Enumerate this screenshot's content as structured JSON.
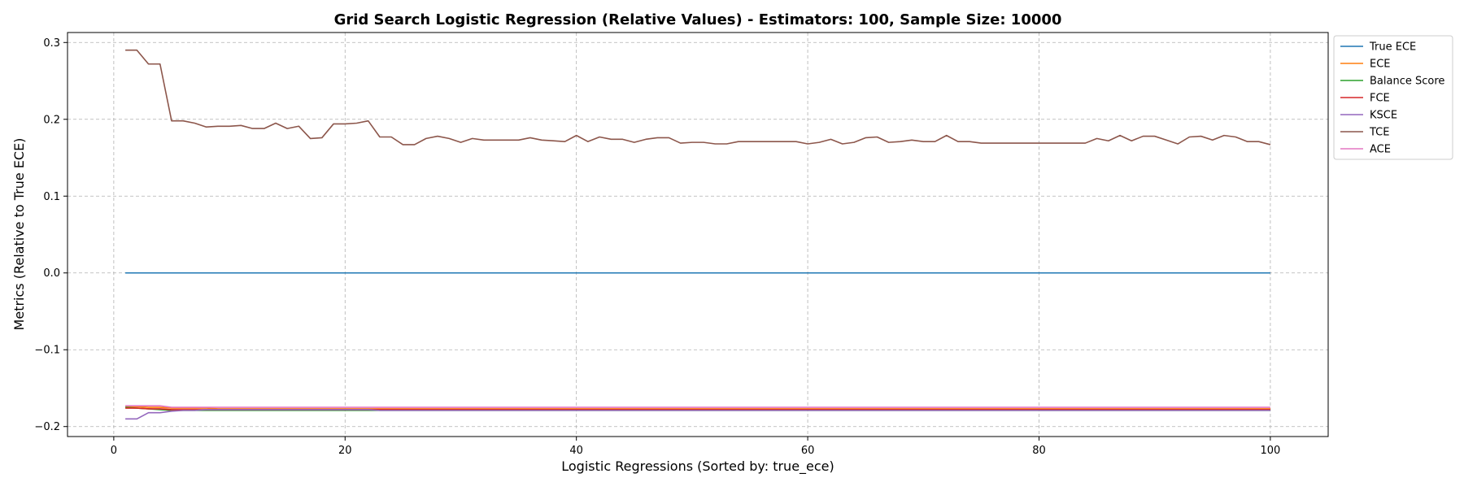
{
  "chart_data": {
    "type": "line",
    "title": "Grid Search Logistic Regression (Relative Values) - Estimators: 100, Sample Size: 10000",
    "xlabel": "Logistic Regressions (Sorted by: true_ece)",
    "ylabel": "Metrics (Relative to True ECE)",
    "xlim": [
      -4,
      105
    ],
    "ylim": [
      -0.213,
      0.313
    ],
    "x_ticks": [
      0,
      20,
      40,
      60,
      80,
      100
    ],
    "y_ticks": [
      -0.2,
      -0.1,
      0.0,
      0.1,
      0.2,
      0.3
    ],
    "y_tick_labels": [
      "−0.2",
      "−0.1",
      "0.0",
      "0.1",
      "0.2",
      "0.3"
    ],
    "grid": true,
    "legend_position": "outside-top-right",
    "x_start": 1,
    "series": [
      {
        "name": "True ECE",
        "color": "#1f77b4",
        "values": [
          0.0,
          0.0,
          0.0,
          0.0,
          0.0,
          0.0,
          0.0,
          0.0,
          0.0,
          0.0,
          0.0,
          0.0,
          0.0,
          0.0,
          0.0,
          0.0,
          0.0,
          0.0,
          0.0,
          0.0,
          0.0,
          0.0,
          0.0,
          0.0,
          0.0,
          0.0,
          0.0,
          0.0,
          0.0,
          0.0,
          0.0,
          0.0,
          0.0,
          0.0,
          0.0,
          0.0,
          0.0,
          0.0,
          0.0,
          0.0,
          0.0,
          0.0,
          0.0,
          0.0,
          0.0,
          0.0,
          0.0,
          0.0,
          0.0,
          0.0,
          0.0,
          0.0,
          0.0,
          0.0,
          0.0,
          0.0,
          0.0,
          0.0,
          0.0,
          0.0,
          0.0,
          0.0,
          0.0,
          0.0,
          0.0,
          0.0,
          0.0,
          0.0,
          0.0,
          0.0,
          0.0,
          0.0,
          0.0,
          0.0,
          0.0,
          0.0,
          0.0,
          0.0,
          0.0,
          0.0,
          0.0,
          0.0,
          0.0,
          0.0,
          0.0,
          0.0,
          0.0,
          0.0,
          0.0,
          0.0,
          0.0,
          0.0,
          0.0,
          0.0,
          0.0,
          0.0,
          0.0,
          0.0,
          0.0,
          0.0
        ]
      },
      {
        "name": "ECE",
        "color": "#ff7f0e",
        "values": [
          -0.174,
          -0.174,
          -0.175,
          -0.175,
          -0.176,
          -0.176,
          -0.176,
          -0.176,
          -0.177,
          -0.177,
          -0.177,
          -0.177,
          -0.177,
          -0.177,
          -0.177,
          -0.177,
          -0.177,
          -0.177,
          -0.177,
          -0.177,
          -0.177,
          -0.177,
          -0.177,
          -0.177,
          -0.177,
          -0.177,
          -0.177,
          -0.177,
          -0.177,
          -0.177,
          -0.177,
          -0.177,
          -0.177,
          -0.177,
          -0.177,
          -0.177,
          -0.177,
          -0.177,
          -0.177,
          -0.177,
          -0.177,
          -0.177,
          -0.177,
          -0.177,
          -0.177,
          -0.177,
          -0.177,
          -0.177,
          -0.177,
          -0.177,
          -0.177,
          -0.177,
          -0.177,
          -0.177,
          -0.177,
          -0.177,
          -0.177,
          -0.177,
          -0.177,
          -0.177,
          -0.177,
          -0.177,
          -0.177,
          -0.177,
          -0.177,
          -0.177,
          -0.177,
          -0.177,
          -0.177,
          -0.177,
          -0.177,
          -0.177,
          -0.177,
          -0.177,
          -0.177,
          -0.177,
          -0.177,
          -0.177,
          -0.177,
          -0.177,
          -0.177,
          -0.177,
          -0.177,
          -0.177,
          -0.177,
          -0.177,
          -0.177,
          -0.177,
          -0.177,
          -0.177,
          -0.177,
          -0.177,
          -0.177,
          -0.177,
          -0.177,
          -0.177,
          -0.177,
          -0.177,
          -0.177,
          -0.177
        ]
      },
      {
        "name": "Balance Score",
        "color": "#2ca02c",
        "values": [
          -0.175,
          -0.176,
          -0.177,
          -0.178,
          -0.179,
          -0.179,
          -0.179,
          -0.179,
          -0.179,
          -0.179,
          -0.179,
          -0.179,
          -0.179,
          -0.179,
          -0.179,
          -0.179,
          -0.179,
          -0.179,
          -0.179,
          -0.179,
          -0.179,
          -0.179,
          -0.179,
          -0.179,
          -0.179,
          -0.179,
          -0.179,
          -0.179,
          -0.179,
          -0.179,
          -0.179,
          -0.179,
          -0.179,
          -0.179,
          -0.179,
          -0.179,
          -0.179,
          -0.179,
          -0.179,
          -0.179,
          -0.179,
          -0.179,
          -0.179,
          -0.179,
          -0.179,
          -0.179,
          -0.179,
          -0.179,
          -0.179,
          -0.179,
          -0.179,
          -0.179,
          -0.179,
          -0.179,
          -0.179,
          -0.179,
          -0.179,
          -0.179,
          -0.179,
          -0.179,
          -0.179,
          -0.179,
          -0.179,
          -0.179,
          -0.179,
          -0.179,
          -0.179,
          -0.179,
          -0.179,
          -0.179,
          -0.179,
          -0.179,
          -0.179,
          -0.179,
          -0.179,
          -0.179,
          -0.179,
          -0.179,
          -0.179,
          -0.179,
          -0.179,
          -0.179,
          -0.179,
          -0.179,
          -0.179,
          -0.179,
          -0.179,
          -0.179,
          -0.179,
          -0.179,
          -0.179,
          -0.179,
          -0.179,
          -0.179,
          -0.179,
          -0.179,
          -0.179,
          -0.179,
          -0.179,
          -0.179
        ]
      },
      {
        "name": "FCE",
        "color": "#d62728",
        "values": [
          -0.176,
          -0.176,
          -0.177,
          -0.177,
          -0.178,
          -0.178,
          -0.178,
          -0.178,
          -0.178,
          -0.178,
          -0.178,
          -0.178,
          -0.178,
          -0.178,
          -0.178,
          -0.178,
          -0.178,
          -0.178,
          -0.178,
          -0.178,
          -0.178,
          -0.178,
          -0.178,
          -0.178,
          -0.178,
          -0.178,
          -0.178,
          -0.178,
          -0.178,
          -0.178,
          -0.178,
          -0.178,
          -0.178,
          -0.178,
          -0.178,
          -0.178,
          -0.178,
          -0.178,
          -0.178,
          -0.178,
          -0.178,
          -0.178,
          -0.178,
          -0.178,
          -0.178,
          -0.178,
          -0.178,
          -0.178,
          -0.178,
          -0.178,
          -0.178,
          -0.178,
          -0.178,
          -0.178,
          -0.178,
          -0.178,
          -0.178,
          -0.178,
          -0.178,
          -0.178,
          -0.178,
          -0.178,
          -0.178,
          -0.178,
          -0.178,
          -0.178,
          -0.178,
          -0.178,
          -0.178,
          -0.178,
          -0.178,
          -0.178,
          -0.178,
          -0.178,
          -0.178,
          -0.178,
          -0.178,
          -0.178,
          -0.178,
          -0.178,
          -0.178,
          -0.178,
          -0.178,
          -0.178,
          -0.178,
          -0.178,
          -0.178,
          -0.178,
          -0.178,
          -0.178,
          -0.178,
          -0.178,
          -0.178,
          -0.178,
          -0.178,
          -0.178,
          -0.178,
          -0.178,
          -0.178,
          -0.178
        ]
      },
      {
        "name": "KSCE",
        "color": "#9467bd",
        "values": [
          -0.19,
          -0.19,
          -0.182,
          -0.182,
          -0.18,
          -0.179,
          -0.179,
          -0.178,
          -0.178,
          -0.178,
          -0.178,
          -0.178,
          -0.178,
          -0.178,
          -0.178,
          -0.178,
          -0.178,
          -0.178,
          -0.178,
          -0.178,
          -0.178,
          -0.178,
          -0.179,
          -0.179,
          -0.179,
          -0.179,
          -0.179,
          -0.179,
          -0.179,
          -0.179,
          -0.179,
          -0.179,
          -0.179,
          -0.179,
          -0.179,
          -0.179,
          -0.179,
          -0.179,
          -0.179,
          -0.179,
          -0.179,
          -0.179,
          -0.179,
          -0.179,
          -0.179,
          -0.179,
          -0.179,
          -0.179,
          -0.179,
          -0.179,
          -0.179,
          -0.179,
          -0.179,
          -0.179,
          -0.179,
          -0.179,
          -0.179,
          -0.179,
          -0.179,
          -0.179,
          -0.179,
          -0.179,
          -0.179,
          -0.179,
          -0.179,
          -0.179,
          -0.179,
          -0.179,
          -0.179,
          -0.179,
          -0.179,
          -0.179,
          -0.179,
          -0.179,
          -0.179,
          -0.179,
          -0.179,
          -0.179,
          -0.179,
          -0.179,
          -0.179,
          -0.179,
          -0.179,
          -0.179,
          -0.179,
          -0.179,
          -0.179,
          -0.179,
          -0.179,
          -0.179,
          -0.179,
          -0.179,
          -0.179,
          -0.179,
          -0.179,
          -0.179,
          -0.179,
          -0.179,
          -0.179,
          -0.179
        ]
      },
      {
        "name": "TCE",
        "color": "#8c564b",
        "values": [
          0.29,
          0.29,
          0.272,
          0.272,
          0.198,
          0.198,
          0.195,
          0.19,
          0.191,
          0.191,
          0.192,
          0.188,
          0.188,
          0.195,
          0.188,
          0.191,
          0.175,
          0.176,
          0.194,
          0.194,
          0.195,
          0.198,
          0.177,
          0.177,
          0.167,
          0.167,
          0.175,
          0.178,
          0.175,
          0.17,
          0.175,
          0.173,
          0.173,
          0.173,
          0.173,
          0.176,
          0.173,
          0.172,
          0.171,
          0.179,
          0.171,
          0.177,
          0.174,
          0.174,
          0.17,
          0.174,
          0.176,
          0.176,
          0.169,
          0.17,
          0.17,
          0.168,
          0.168,
          0.171,
          0.171,
          0.171,
          0.171,
          0.171,
          0.171,
          0.168,
          0.17,
          0.174,
          0.168,
          0.17,
          0.176,
          0.177,
          0.17,
          0.171,
          0.173,
          0.171,
          0.171,
          0.179,
          0.171,
          0.171,
          0.169,
          0.169,
          0.169,
          0.169,
          0.169,
          0.169,
          0.169,
          0.169,
          0.169,
          0.169,
          0.175,
          0.172,
          0.179,
          0.172,
          0.178,
          0.178,
          0.173,
          0.168,
          0.177,
          0.178,
          0.173,
          0.179,
          0.177,
          0.171,
          0.171,
          0.167
        ]
      },
      {
        "name": "ACE",
        "color": "#e377c2",
        "values": [
          -0.173,
          -0.173,
          -0.173,
          -0.173,
          -0.175,
          -0.175,
          -0.175,
          -0.175,
          -0.175,
          -0.175,
          -0.175,
          -0.175,
          -0.175,
          -0.175,
          -0.175,
          -0.175,
          -0.175,
          -0.175,
          -0.175,
          -0.175,
          -0.175,
          -0.175,
          -0.175,
          -0.175,
          -0.175,
          -0.175,
          -0.175,
          -0.175,
          -0.175,
          -0.175,
          -0.175,
          -0.175,
          -0.175,
          -0.175,
          -0.175,
          -0.175,
          -0.175,
          -0.175,
          -0.175,
          -0.175,
          -0.175,
          -0.175,
          -0.175,
          -0.175,
          -0.175,
          -0.175,
          -0.175,
          -0.175,
          -0.175,
          -0.175,
          -0.175,
          -0.175,
          -0.175,
          -0.175,
          -0.175,
          -0.175,
          -0.175,
          -0.175,
          -0.175,
          -0.175,
          -0.175,
          -0.175,
          -0.175,
          -0.175,
          -0.175,
          -0.175,
          -0.175,
          -0.175,
          -0.175,
          -0.175,
          -0.175,
          -0.175,
          -0.175,
          -0.175,
          -0.175,
          -0.175,
          -0.175,
          -0.175,
          -0.175,
          -0.175,
          -0.175,
          -0.175,
          -0.175,
          -0.175,
          -0.175,
          -0.175,
          -0.175,
          -0.175,
          -0.175,
          -0.175,
          -0.175,
          -0.175,
          -0.175,
          -0.175,
          -0.175,
          -0.175,
          -0.175,
          -0.175,
          -0.175,
          -0.175
        ]
      }
    ]
  }
}
